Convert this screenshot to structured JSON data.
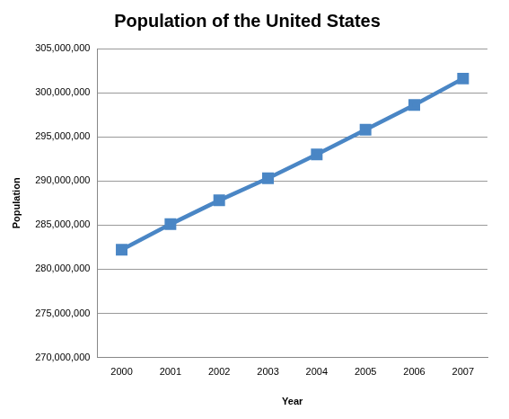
{
  "chart_data": {
    "type": "line",
    "title": "Population of the United States",
    "x_label": "Year",
    "y_label": "Population",
    "categories": [
      "2000",
      "2001",
      "2002",
      "2003",
      "2004",
      "2005",
      "2006",
      "2007"
    ],
    "values": [
      282200000,
      285100000,
      287800000,
      290300000,
      293000000,
      295800000,
      298600000,
      301600000
    ],
    "color": "#4a86c5",
    "marker": "square",
    "line_style": "solid",
    "ylim": [
      270000000,
      305000000
    ],
    "yticks": [
      {
        "value": 270000000,
        "label": "270,000,000"
      },
      {
        "value": 275000000,
        "label": "275,000,000"
      },
      {
        "value": 280000000,
        "label": "280,000,000"
      },
      {
        "value": 285000000,
        "label": "285,000,000"
      },
      {
        "value": 290000000,
        "label": "290,000,000"
      },
      {
        "value": 295000000,
        "label": "295,000,000"
      },
      {
        "value": 300000000,
        "label": "300,000,000"
      },
      {
        "value": 305000000,
        "label": "305,000,000"
      }
    ],
    "grid": true
  }
}
